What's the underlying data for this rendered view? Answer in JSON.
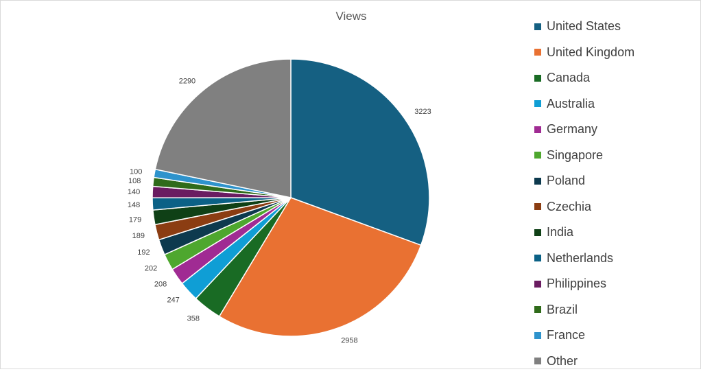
{
  "chart_data": {
    "type": "pie",
    "title": "Views",
    "legend_position": "right",
    "series": [
      {
        "name": "United States",
        "value": 3223,
        "color": "#156082"
      },
      {
        "name": "United Kingdom",
        "value": 2958,
        "color": "#E97132"
      },
      {
        "name": "Canada",
        "value": 358,
        "color": "#196B24"
      },
      {
        "name": "Australia",
        "value": 247,
        "color": "#0F9ED5"
      },
      {
        "name": "Germany",
        "value": 208,
        "color": "#A02B93"
      },
      {
        "name": "Singapore",
        "value": 202,
        "color": "#4EA72E"
      },
      {
        "name": "Poland",
        "value": 192,
        "color": "#0D3A4E"
      },
      {
        "name": "Czechia",
        "value": 189,
        "color": "#8B3D12"
      },
      {
        "name": "India",
        "value": 179,
        "color": "#0F4016"
      },
      {
        "name": "Netherlands",
        "value": 148,
        "color": "#0B6186"
      },
      {
        "name": "Philippines",
        "value": 140,
        "color": "#6A1C61"
      },
      {
        "name": "Brazil",
        "value": 108,
        "color": "#2F6B1A"
      },
      {
        "name": "France",
        "value": 100,
        "color": "#2E93CC"
      },
      {
        "name": "Other",
        "value": 2290,
        "color": "#808080"
      }
    ]
  }
}
